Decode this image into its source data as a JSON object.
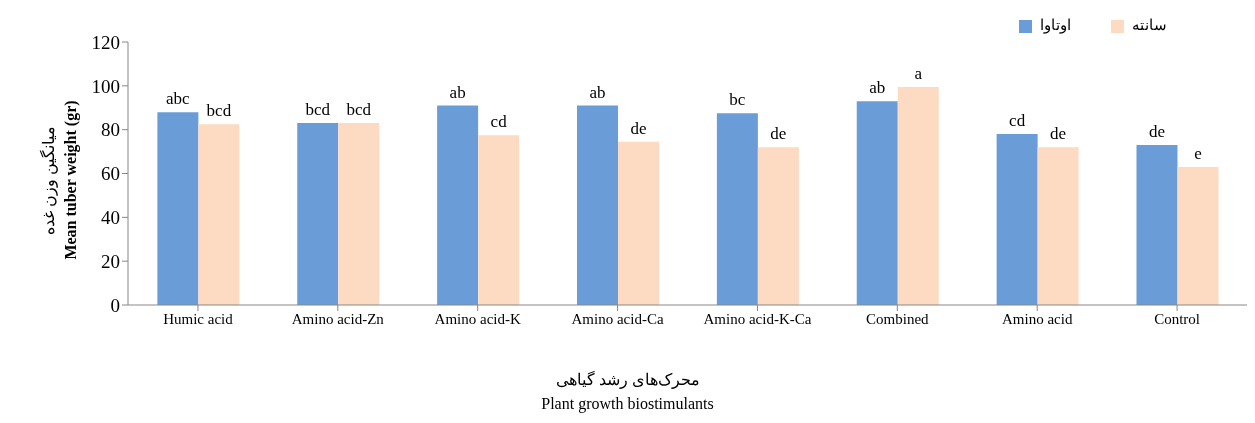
{
  "chart_data": {
    "type": "bar",
    "xlabel": "محرک‌های رشد گیاهی\nPlant growth biostimulants",
    "ylabel": "میانگین وزن غده\nMean tuber weight  (gr)",
    "categories": [
      "Humic acid",
      "Amino acid-Zn",
      "Amino acid-K",
      "Amino acid-Ca",
      "Amino acid-K-Ca",
      "Combined",
      "Amino acid",
      "Control"
    ],
    "series": [
      {
        "name": "اوتاوا",
        "color": "#6a9cd8",
        "values": [
          88,
          83,
          91,
          91,
          87.5,
          93,
          78,
          73
        ]
      },
      {
        "name": "سانته",
        "color": "#fcdbc2",
        "values": [
          82.5,
          83,
          77.5,
          74.5,
          72,
          99.5,
          72,
          63
        ]
      }
    ],
    "ylim": [
      0,
      120
    ],
    "yticks": [
      0,
      20,
      40,
      60,
      80,
      100,
      120
    ],
    "legend": "top right",
    "annotations": [
      {
        "text": "abc",
        "x": "Humic acid",
        "y": 88
      },
      {
        "text": "bcd",
        "x": "Humic acid",
        "y": 82.5
      },
      {
        "text": "bcd",
        "x": "Amino acid-Zn",
        "y": 83
      },
      {
        "text": "bcd",
        "x": "Amino acid-Zn",
        "y": 83
      },
      {
        "text": "ab",
        "x": "Amino acid-K",
        "y": 91
      },
      {
        "text": "cd",
        "x": "Amino acid-K",
        "y": 77.5
      },
      {
        "text": "ab",
        "x": "Amino acid-Ca",
        "y": 91
      },
      {
        "text": "de",
        "x": "Amino acid-Ca",
        "y": 74.5
      },
      {
        "text": "bc",
        "x": "Amino acid-K-Ca",
        "y": 87.5
      },
      {
        "text": "de",
        "x": "Amino acid-K-Ca",
        "y": 72
      },
      {
        "text": "ab",
        "x": "Combined",
        "y": 93
      },
      {
        "text": "a",
        "x": "Combined",
        "y": 99.5
      },
      {
        "text": "cd",
        "x": "Amino acid",
        "y": 78
      },
      {
        "text": "de",
        "x": "Amino acid",
        "y": 72
      },
      {
        "text": "de",
        "x": "Control",
        "y": 73
      },
      {
        "text": "e",
        "x": "Control",
        "y": 63
      }
    ]
  }
}
